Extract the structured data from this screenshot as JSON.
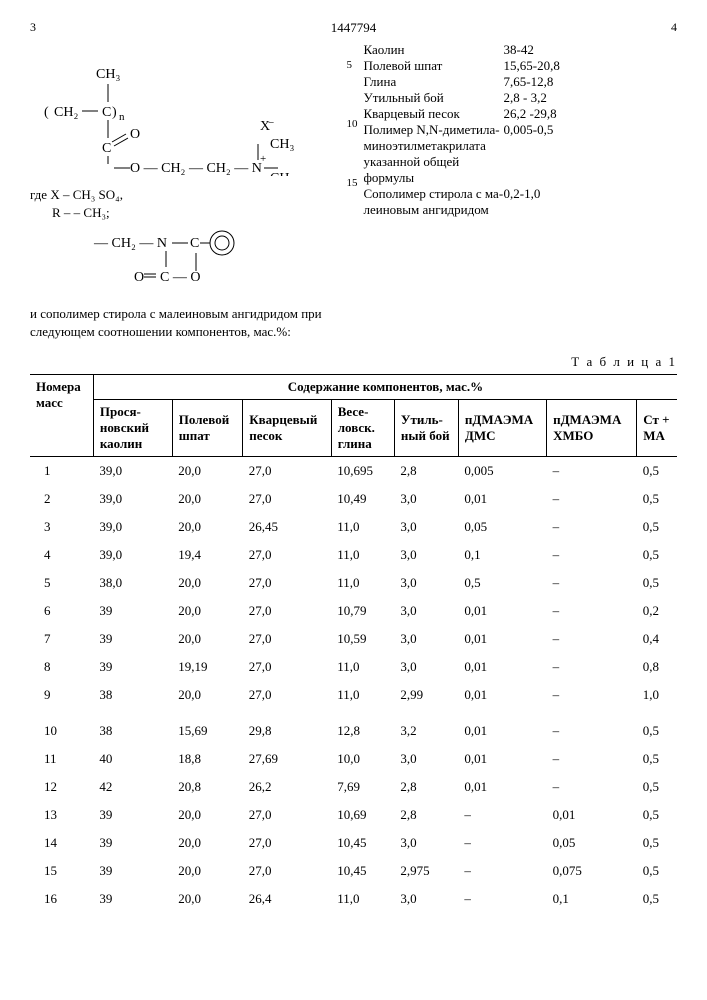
{
  "header": {
    "left_page": "3",
    "doc_id": "1447794",
    "right_page": "4"
  },
  "line_markers": [
    "5",
    "10",
    "15"
  ],
  "left_col": {
    "where_x": "где X ‒ CH₃ SO₄,",
    "where_r": "R ‒ ‒ CH₃;",
    "para": "и сополимер стирола с малеиновым ан­гидридом при следующем соотношении компонентов, мас.%:"
  },
  "right_col": {
    "rows": [
      {
        "label": "Каолин",
        "value": "38-42"
      },
      {
        "label": "Полевой шпат",
        "value": "15,65-20,8"
      },
      {
        "label": "Глина",
        "value": "7,65-12,8"
      },
      {
        "label": "Утильный бой",
        "value": "2,8 - 3,2"
      },
      {
        "label": "Кварцевый песок",
        "value": "26,2 -29,8"
      },
      {
        "label": "Полимер N,N-диметила­миноэтилмета­крилата ука­занной общей формулы",
        "value": "0,005-0,5"
      },
      {
        "label": "Сополимер стирола с ма­леиновым ан­гидридом",
        "value": "0,2-1,0"
      }
    ]
  },
  "table": {
    "title": "Т а б л и ц а 1",
    "group_header": "Содержание компонентов, мас.%",
    "row_header": "Номера масс",
    "cols": [
      "Прося­новский каолин",
      "Полевой шпат",
      "Кварцевый песок",
      "Весе­ловск. глина",
      "Утиль­ный бой",
      "пДМАЭМА ДМС",
      "пДМАЭМА ХМБО",
      "Ст + МА"
    ],
    "rows": [
      {
        "n": "1",
        "v": [
          "39,0",
          "20,0",
          "27,0",
          "10,695",
          "2,8",
          "0,005",
          "–",
          "0,5"
        ]
      },
      {
        "n": "2",
        "v": [
          "39,0",
          "20,0",
          "27,0",
          "10,49",
          "3,0",
          "0,01",
          "–",
          "0,5"
        ]
      },
      {
        "n": "3",
        "v": [
          "39,0",
          "20,0",
          "26,45",
          "11,0",
          "3,0",
          "0,05",
          "–",
          "0,5"
        ]
      },
      {
        "n": "4",
        "v": [
          "39,0",
          "19,4",
          "27,0",
          "11,0",
          "3,0",
          "0,1",
          "–",
          "0,5"
        ]
      },
      {
        "n": "5",
        "v": [
          "38,0",
          "20,0",
          "27,0",
          "11,0",
          "3,0",
          "0,5",
          "–",
          "0,5"
        ]
      },
      {
        "n": "6",
        "v": [
          "39",
          "20,0",
          "27,0",
          "10,79",
          "3,0",
          "0,01",
          "–",
          "0,2"
        ]
      },
      {
        "n": "7",
        "v": [
          "39",
          "20,0",
          "27,0",
          "10,59",
          "3,0",
          "0,01",
          "–",
          "0,4"
        ]
      },
      {
        "n": "8",
        "v": [
          "39",
          "19,19",
          "27,0",
          "11,0",
          "3,0",
          "0,01",
          "–",
          "0,8"
        ]
      },
      {
        "n": "9",
        "v": [
          "38",
          "20,0",
          "27,0",
          "11,0",
          "2,99",
          "0,01",
          "–",
          "1,0"
        ]
      },
      {
        "n": "10",
        "v": [
          "38",
          "15,69",
          "29,8",
          "12,8",
          "3,2",
          "0,01",
          "–",
          "0,5"
        ],
        "gap": true
      },
      {
        "n": "11",
        "v": [
          "40",
          "18,8",
          "27,69",
          "10,0",
          "3,0",
          "0,01",
          "–",
          "0,5"
        ]
      },
      {
        "n": "12",
        "v": [
          "42",
          "20,8",
          "26,2",
          "7,69",
          "2,8",
          "0,01",
          "–",
          "0,5"
        ]
      },
      {
        "n": "13",
        "v": [
          "39",
          "20,0",
          "27,0",
          "10,69",
          "2,8",
          "–",
          "0,01",
          "0,5"
        ]
      },
      {
        "n": "14",
        "v": [
          "39",
          "20,0",
          "27,0",
          "10,45",
          "3,0",
          "–",
          "0,05",
          "0,5"
        ]
      },
      {
        "n": "15",
        "v": [
          "39",
          "20,0",
          "27,0",
          "10,45",
          "2,975",
          "–",
          "0,075",
          "0,5"
        ]
      },
      {
        "n": "16",
        "v": [
          "39",
          "20,0",
          "26,4",
          "11,0",
          "3,0",
          "–",
          "0,1",
          "0,5"
        ]
      }
    ]
  }
}
